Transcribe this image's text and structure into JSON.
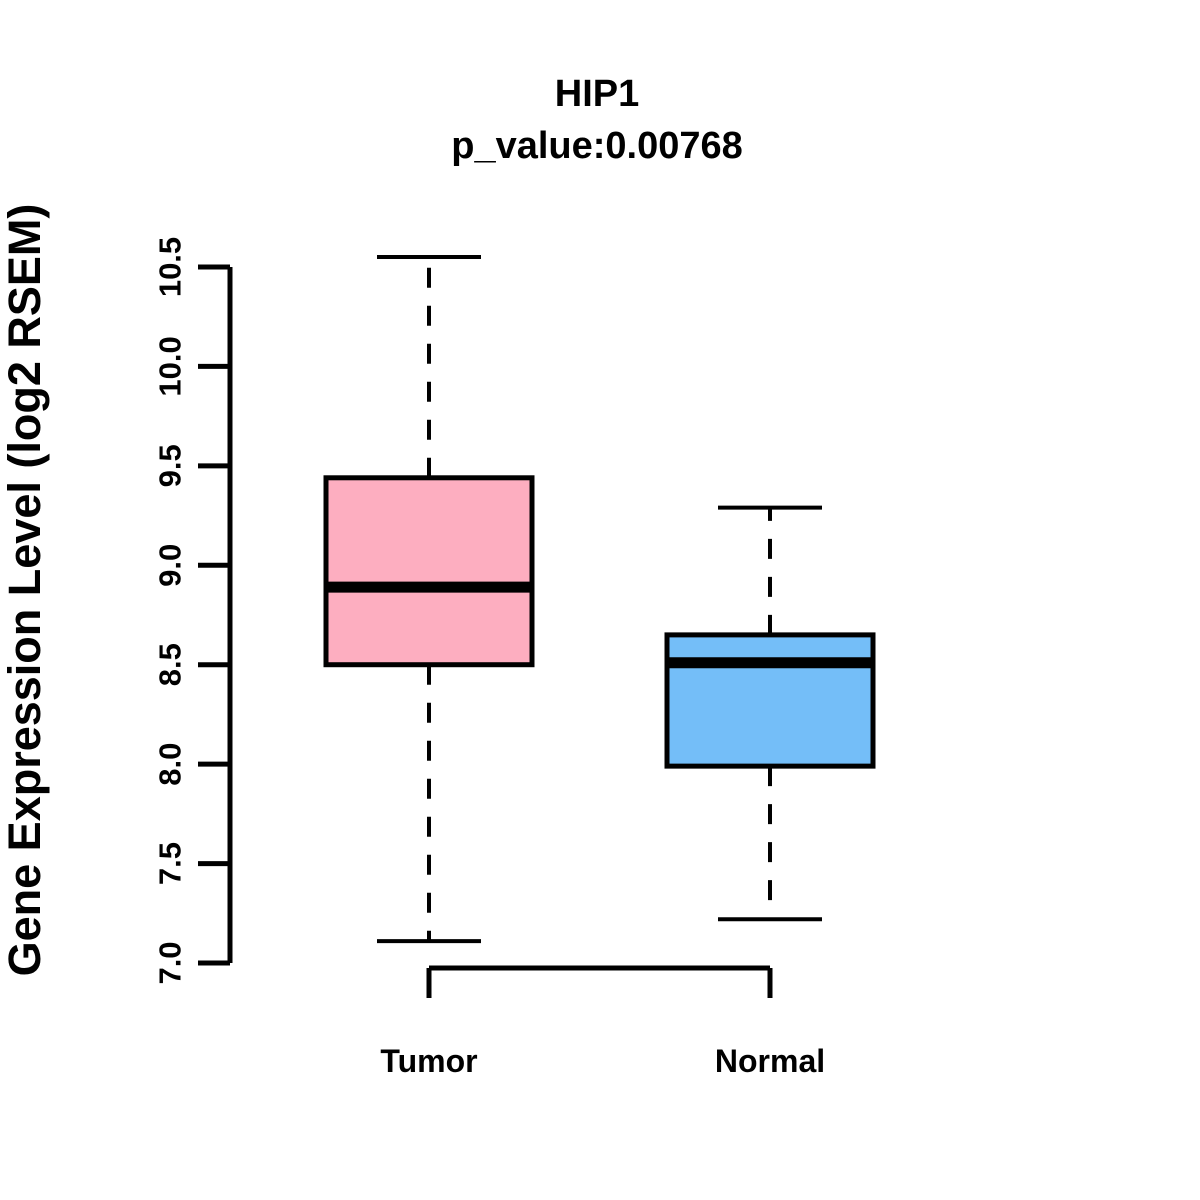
{
  "title": "HIP1",
  "subtitle": "p_value:0.00768",
  "colors": {
    "tumor_box": "#FDAEC0",
    "normal_box": "#74BEF8",
    "axis": "#000000",
    "background": "#FFFFFF"
  },
  "chart_data": {
    "type": "boxplot",
    "title": "HIP1",
    "subtitle": "p_value:0.00768",
    "ylabel": "Gene Expression Level (log2 RSEM)",
    "xlabel": "",
    "ylim": [
      7.0,
      10.5
    ],
    "yticks": [
      7.0,
      7.5,
      8.0,
      8.5,
      9.0,
      9.5,
      10.0,
      10.5
    ],
    "ytick_labels": [
      "7.0",
      "7.5",
      "8.0",
      "8.5",
      "9.0",
      "9.5",
      "10.0",
      "10.5"
    ],
    "categories": [
      "Tumor",
      "Normal"
    ],
    "grid": "off",
    "legend": "none",
    "series": [
      {
        "name": "Tumor",
        "color": "#FDAEC0",
        "whisker_low": 7.11,
        "q1": 8.5,
        "median": 8.89,
        "q3": 9.44,
        "whisker_high": 10.55
      },
      {
        "name": "Normal",
        "color": "#74BEF8",
        "whisker_low": 7.22,
        "q1": 7.99,
        "median": 8.51,
        "q3": 8.65,
        "whisker_high": 9.29
      }
    ]
  }
}
